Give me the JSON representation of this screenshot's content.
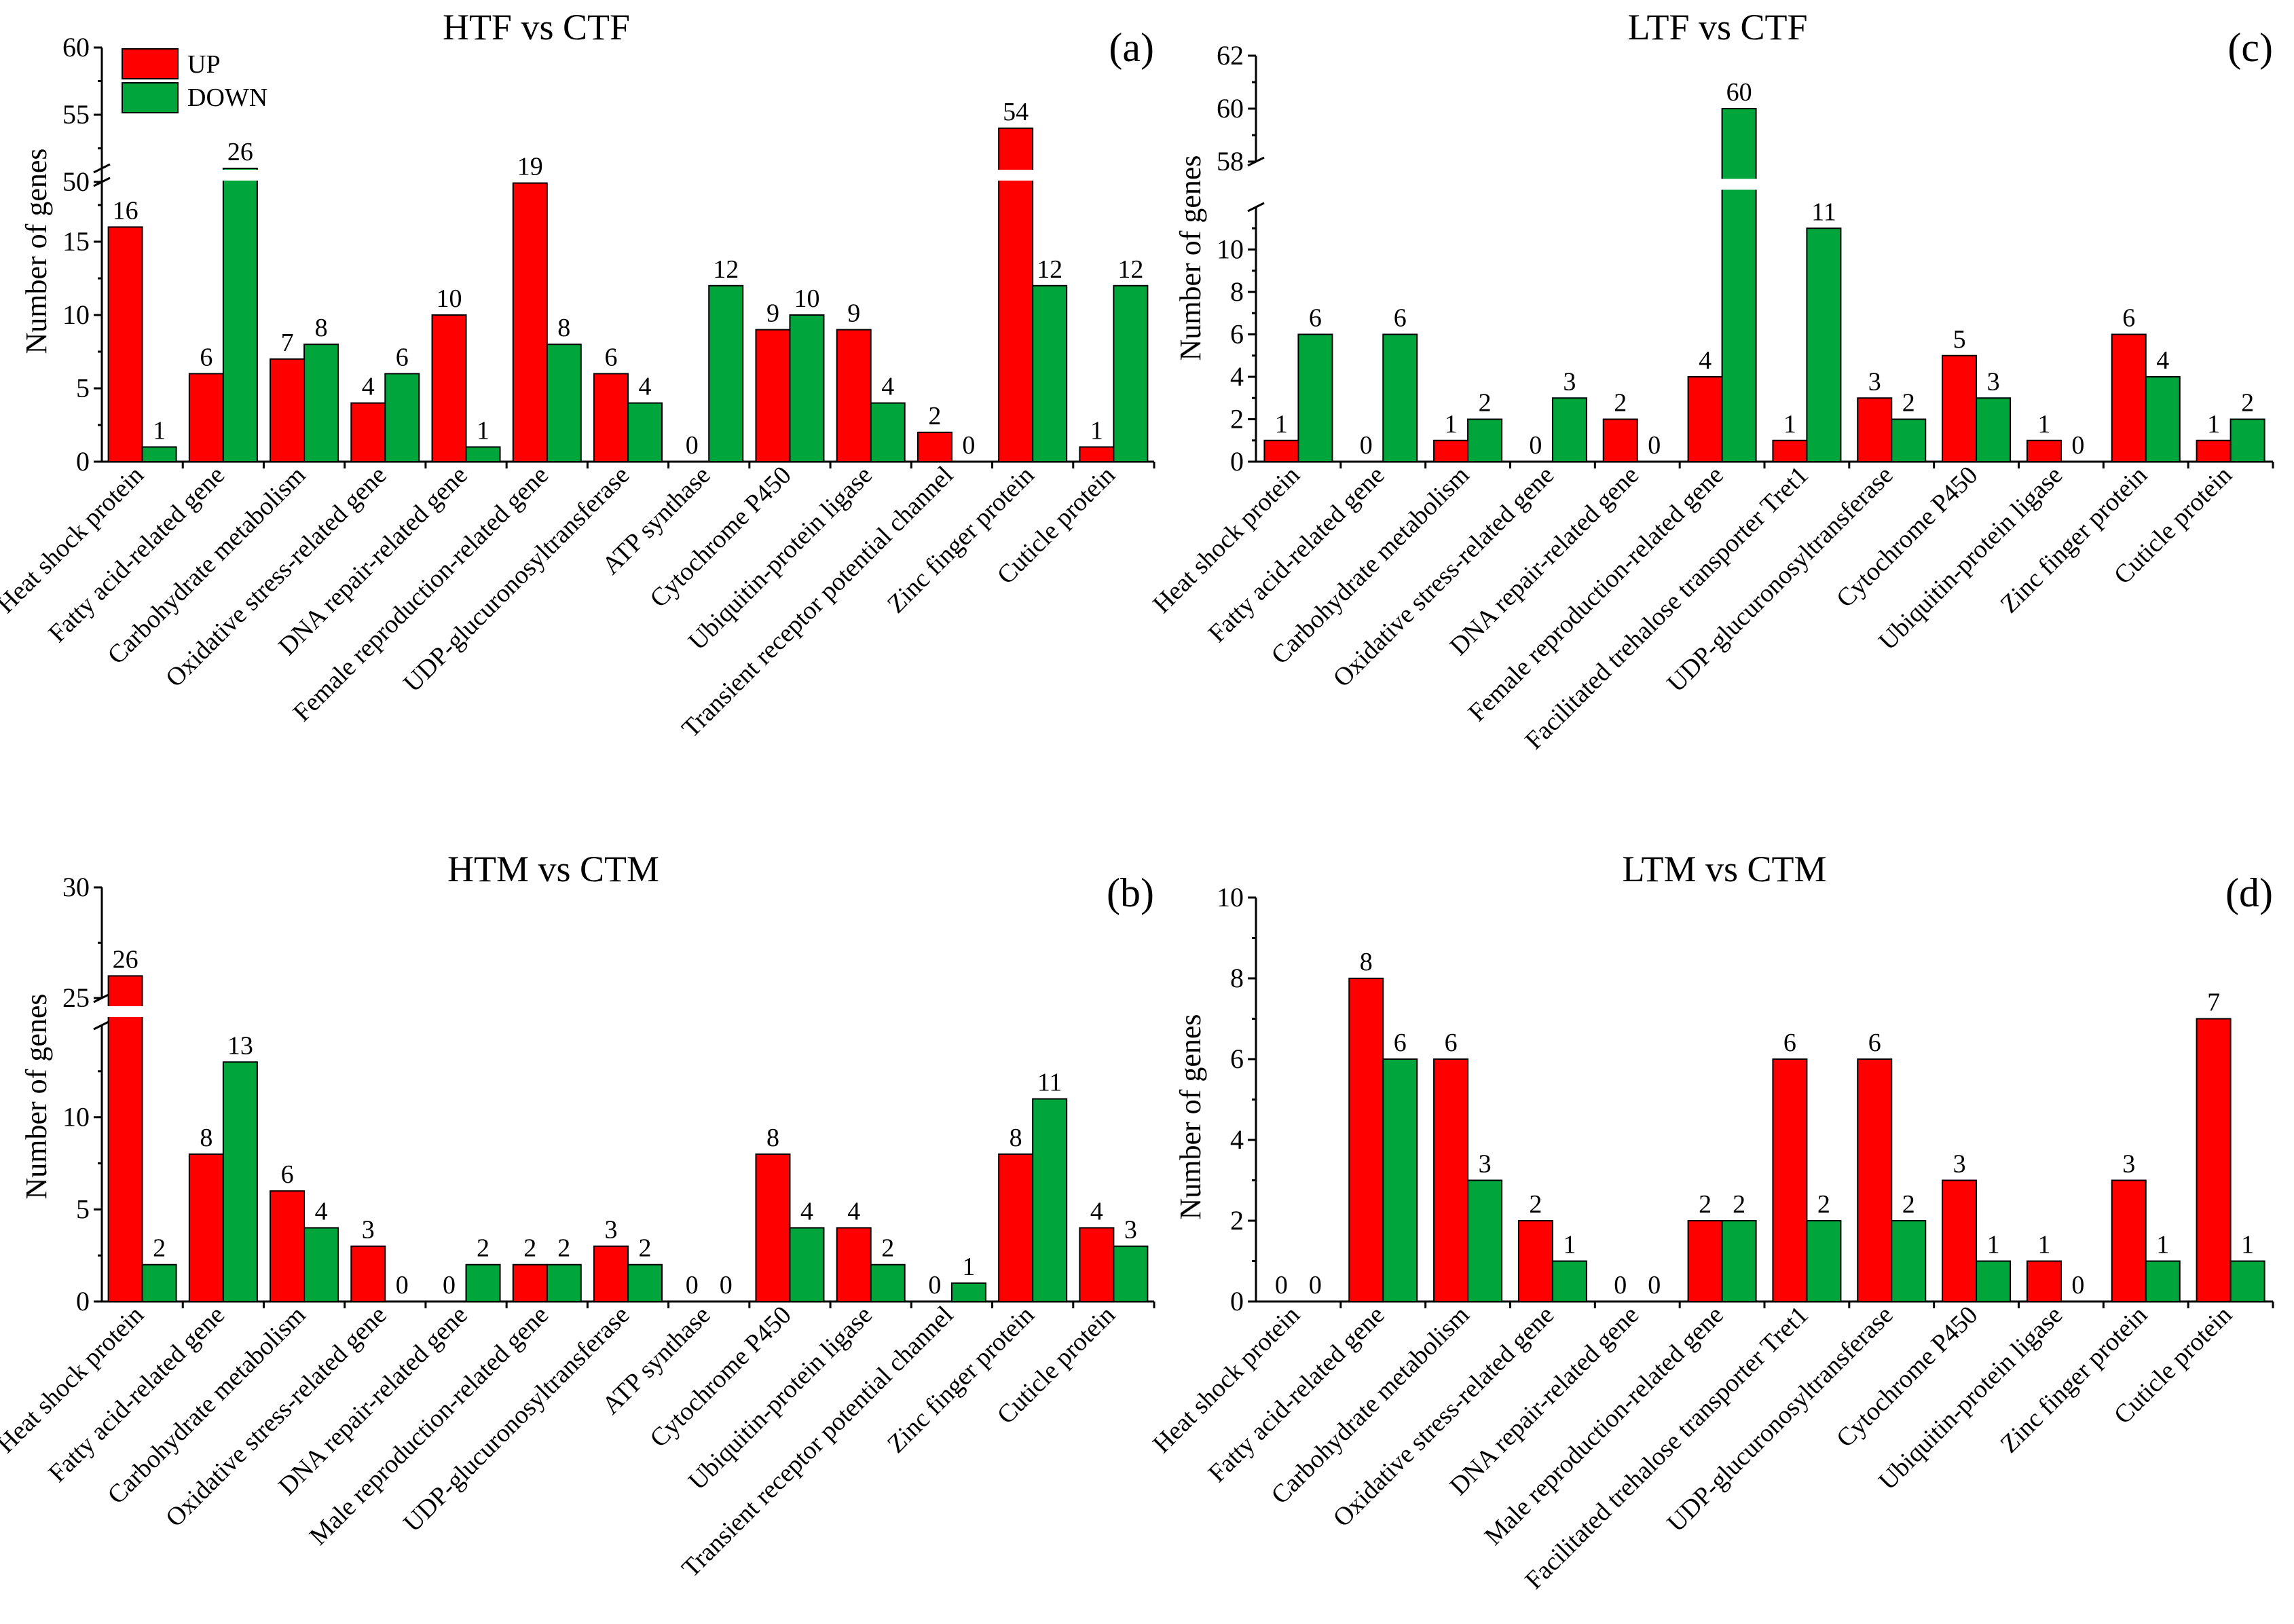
{
  "legend": {
    "up": "UP",
    "down": "DOWN"
  },
  "colors": {
    "up": "#ff0000",
    "down": "#00a63c",
    "stroke": "#000000"
  },
  "chart_data": [
    {
      "id": "a",
      "type": "bar",
      "title": "HTF vs CTF",
      "panel_label": "(a)",
      "ylabel": "Number of  genes",
      "categories": [
        "Heat shock protein",
        "Fatty acid-related gene",
        "Carbohydrate metabolism",
        "Oxidative stress-related gene",
        "DNA repair-related gene",
        "Female reproduction-related gene",
        "UDP-glucuronosyltransferase",
        "ATP synthase",
        "Cytochrome P450",
        "Ubiquitin-protein ligase",
        "Transient receptor potential channel",
        "Zinc finger protein",
        "Cuticle protein"
      ],
      "series": [
        {
          "name": "UP",
          "values": [
            16,
            6,
            7,
            4,
            10,
            19,
            6,
            0,
            9,
            9,
            2,
            54,
            1
          ]
        },
        {
          "name": "DOWN",
          "values": [
            1,
            26,
            8,
            6,
            1,
            8,
            4,
            12,
            10,
            4,
            0,
            12,
            12
          ]
        }
      ],
      "y_axis": {
        "segments": [
          {
            "range": [
              0,
              20
            ],
            "ticks": [
              0,
              5,
              10,
              15
            ]
          },
          {
            "range": [
              50,
              60
            ],
            "ticks": [
              50,
              55,
              60
            ]
          }
        ]
      },
      "break_label_values": {
        "26": 20
      }
    },
    {
      "id": "c",
      "type": "bar",
      "title": "LTF vs CTF",
      "panel_label": "(c)",
      "ylabel": "Number of  genes",
      "categories": [
        "Heat shock protein",
        "Fatty acid-related gene",
        "Carbohydrate metabolism",
        "Oxidative stress-related gene",
        "DNA repair-related gene",
        "Female reproduction-related gene",
        "Facilitated trehalose transporter Tret1",
        "UDP-glucuronosyltransferase",
        "Cytochrome P450",
        "Ubiquitin-protein ligase",
        "Zinc finger protein",
        "Cuticle protein"
      ],
      "series": [
        {
          "name": "UP",
          "values": [
            1,
            0,
            1,
            0,
            2,
            4,
            1,
            3,
            5,
            1,
            6,
            1
          ]
        },
        {
          "name": "DOWN",
          "values": [
            6,
            6,
            2,
            3,
            0,
            60,
            11,
            2,
            3,
            0,
            4,
            2
          ]
        }
      ],
      "y_axis": {
        "segments": [
          {
            "range": [
              0,
              12
            ],
            "ticks": [
              0,
              2,
              4,
              6,
              8,
              10
            ]
          },
          {
            "range": [
              58,
              62
            ],
            "ticks": [
              58,
              60,
              62
            ]
          }
        ]
      }
    },
    {
      "id": "b",
      "type": "bar",
      "title": "HTM vs CTM",
      "panel_label": "(b)",
      "ylabel": "Number of  genes",
      "categories": [
        "Heat shock protein",
        "Fatty acid-related gene",
        "Carbohydrate metabolism",
        "Oxidative stress-related gene",
        "DNA repair-related gene",
        "Male reproduction-related gene",
        "UDP-glucuronosyltransferase",
        "ATP synthase",
        "Cytochrome P450",
        "Ubiquitin-protein ligase",
        "Transient receptor potential channel",
        "Zinc finger protein",
        "Cuticle protein"
      ],
      "series": [
        {
          "name": "UP",
          "values": [
            26,
            8,
            6,
            3,
            0,
            2,
            3,
            0,
            8,
            4,
            0,
            8,
            4
          ]
        },
        {
          "name": "DOWN",
          "values": [
            2,
            13,
            4,
            0,
            2,
            2,
            2,
            0,
            4,
            2,
            1,
            11,
            3
          ]
        }
      ],
      "y_axis": {
        "segments": [
          {
            "range": [
              0,
              15
            ],
            "ticks": [
              0,
              5,
              10
            ]
          },
          {
            "range": [
              25,
              30
            ],
            "ticks": [
              25,
              30
            ]
          }
        ]
      }
    },
    {
      "id": "d",
      "type": "bar",
      "title": "LTM vs CTM",
      "panel_label": "(d)",
      "ylabel": "Number of  genes",
      "categories": [
        "Heat shock protein",
        "Fatty acid-related gene",
        "Carbohydrate metabolism",
        "Oxidative stress-related gene",
        "DNA repair-related gene",
        "Male reproduction-related gene",
        "Facilitated trehalose transporter Tret1",
        "UDP-glucuronosyltransferase",
        "Cytochrome P450",
        "Ubiquitin-protein ligase",
        "Zinc finger protein",
        "Cuticle protein"
      ],
      "series": [
        {
          "name": "UP",
          "values": [
            0,
            8,
            6,
            2,
            0,
            2,
            6,
            6,
            3,
            1,
            3,
            7
          ]
        },
        {
          "name": "DOWN",
          "values": [
            0,
            6,
            3,
            1,
            0,
            2,
            2,
            2,
            1,
            0,
            1,
            1
          ]
        }
      ],
      "y_axis": {
        "segments": [
          {
            "range": [
              0,
              10
            ],
            "ticks": [
              0,
              2,
              4,
              6,
              8,
              10
            ]
          }
        ]
      }
    }
  ]
}
